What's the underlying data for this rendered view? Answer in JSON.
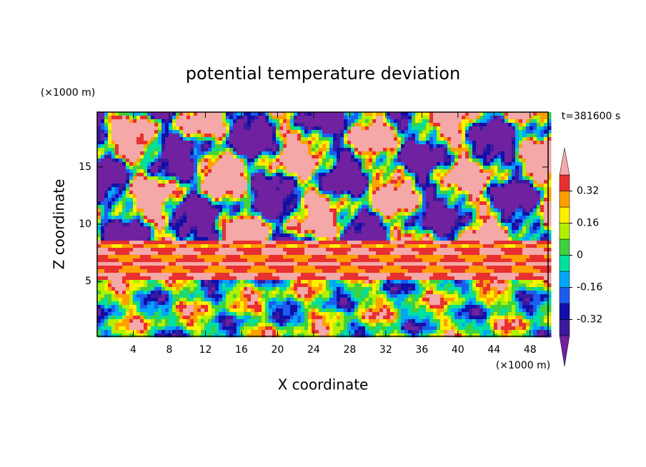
{
  "chart_data": {
    "type": "contour",
    "title": "potential temperature deviation",
    "x_label": "X coordinate",
    "y_label": "Z coordinate",
    "x_unit": "(×1000 m)",
    "y_unit": "(×1000 m)",
    "annotation": "t=381600 s",
    "xlim": [
      0,
      50
    ],
    "xticks": [
      4,
      8,
      12,
      16,
      20,
      24,
      28,
      32,
      36,
      40,
      44,
      48
    ],
    "ylim": [
      0.2,
      19.8
    ],
    "yticks": [
      5,
      10,
      15
    ],
    "clim": [
      -0.4,
      0.4
    ],
    "cticks": [
      -0.32,
      -0.16,
      0,
      0.16,
      0.32
    ],
    "colors": [
      "#7021a0",
      "#3c1a9c",
      "#1010a8",
      "#1c5cf0",
      "#00a8f8",
      "#00e0a0",
      "#40d040",
      "#b0f000",
      "#fff000",
      "#ffa000",
      "#e83030",
      "#f4a8a8"
    ]
  }
}
